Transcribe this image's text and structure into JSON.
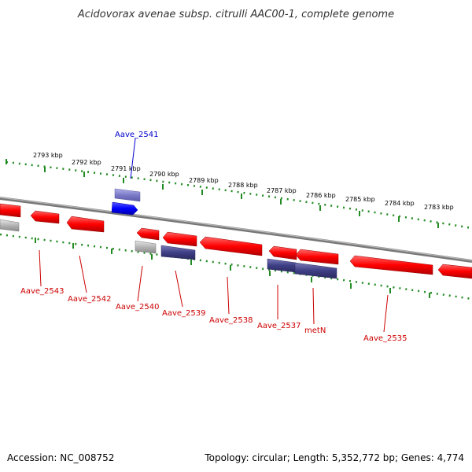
{
  "title": "Acidovorax avenae subsp. citrulli AAC00-1, complete genome",
  "footer": {
    "accession": "Accession: NC_008752",
    "summary": "Topology: circular; Length: 5,352,772 bp; Genes: 4,774"
  },
  "colors": {
    "forward_gene": "#ff0000",
    "reverse_gene": "#ff0000",
    "highlight_gene": "#0000ff",
    "rna_gene": "#4a4a90",
    "pseudo_gene": "#aaaaaa",
    "backbone": "#888888",
    "ruler": "#228b22",
    "label_forward": "#cc0000",
    "label_highlight": "#0000cc"
  },
  "ruler_ticks": [
    "2793 kbp",
    "2792 kbp",
    "2791 kbp",
    "2790 kbp",
    "2789 kbp",
    "2788 kbp",
    "2787 kbp",
    "2786 kbp",
    "2785 kbp",
    "2784 kbp",
    "2783 kbp"
  ],
  "gene_labels": {
    "g2541": "Aave_2541",
    "g2543": "Aave_2543",
    "g2542": "Aave_2542",
    "g2540": "Aave_2540",
    "g2539": "Aave_2539",
    "g2538": "Aave_2538",
    "g2537": "Aave_2537",
    "metN": "metN",
    "g2535": "Aave_2535"
  }
}
